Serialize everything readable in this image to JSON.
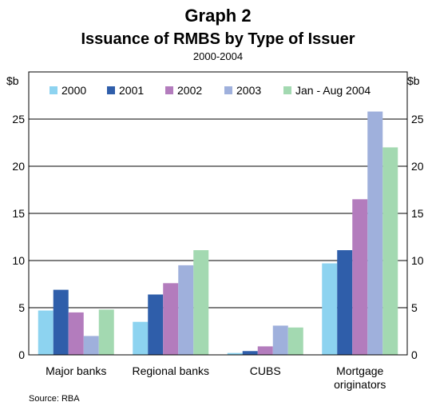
{
  "chart_data": {
    "type": "bar",
    "graph_label": "Graph 2",
    "title": "Issuance of RMBS by Type of Issuer",
    "subtitle": "2000-2004",
    "left_unit": "$b",
    "right_unit": "$b",
    "source": "Source: RBA",
    "categories": [
      [
        "Major banks"
      ],
      [
        "Regional banks"
      ],
      [
        "CUBS"
      ],
      [
        "Mortgage",
        "originators"
      ]
    ],
    "series": [
      {
        "name": "2000",
        "color": "#8dd3f0",
        "values": [
          4.7,
          3.5,
          0.2,
          9.7
        ]
      },
      {
        "name": "2001",
        "color": "#2f5eaa",
        "values": [
          6.9,
          6.4,
          0.4,
          11.1
        ]
      },
      {
        "name": "2002",
        "color": "#b37cbd",
        "values": [
          4.5,
          7.6,
          0.9,
          16.5
        ]
      },
      {
        "name": "2003",
        "color": "#9fb0dc",
        "values": [
          2.0,
          9.5,
          3.1,
          25.8
        ]
      },
      {
        "name": "Jan - Aug 2004",
        "color": "#a3d9b1",
        "values": [
          4.8,
          11.1,
          2.9,
          22.0
        ]
      }
    ],
    "ylim": [
      0,
      30
    ],
    "yticks": [
      0,
      5,
      10,
      15,
      20,
      25
    ],
    "grid": true,
    "legend_position": "top"
  }
}
